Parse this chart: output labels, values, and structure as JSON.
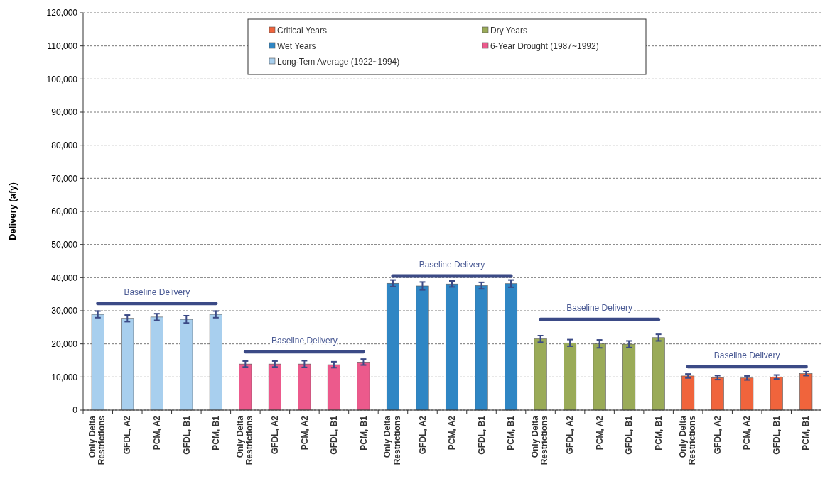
{
  "chart_data": {
    "type": "bar",
    "ylabel": "Delivery (afy)",
    "categories": [
      "Only Delta Restrictions",
      "GFDL, A2",
      "PCM, A2",
      "GFDL, B1",
      "PCM, B1",
      "Only Delta Restrictions",
      "GFDL, A2",
      "PCM, A2",
      "GFDL, B1",
      "PCM, B1",
      "Only Delta Restrictions",
      "GFDL, A2",
      "PCM, A2",
      "GFDL, B1",
      "PCM, B1",
      "Only Delta Restrictions",
      "GFDL, A2",
      "PCM, A2",
      "GFDL, B1",
      "PCM, B1",
      "Only Delta Restrictions",
      "GFDL, A2",
      "PCM, A2",
      "GFDL, B1",
      "PCM, B1"
    ],
    "ylim": [
      0,
      120000
    ],
    "yticks": [
      {
        "value": 0,
        "label": "0"
      },
      {
        "value": 10000,
        "label": "10,000"
      },
      {
        "value": 20000,
        "label": "20,000"
      },
      {
        "value": 30000,
        "label": "30,000"
      },
      {
        "value": 40000,
        "label": "40,000"
      },
      {
        "value": 50000,
        "label": "50,000"
      },
      {
        "value": 60000,
        "label": "60,000"
      },
      {
        "value": 70000,
        "label": "70,000"
      },
      {
        "value": 80000,
        "label": "80,000"
      },
      {
        "value": 90000,
        "label": "90,000"
      },
      {
        "value": 100000,
        "label": "100,000"
      },
      {
        "value": 110000,
        "label": "110,000"
      },
      {
        "value": 120000,
        "label": "120,000"
      }
    ],
    "grid": "y",
    "legend": "top",
    "series": [
      {
        "name": "Critical Years",
        "color": "#f0643c",
        "values": [
          null,
          null,
          null,
          null,
          null,
          null,
          null,
          null,
          null,
          null,
          null,
          null,
          null,
          null,
          null,
          null,
          null,
          null,
          null,
          null,
          10300,
          9800,
          9700,
          10000,
          11000
        ],
        "errors": [
          null,
          null,
          null,
          null,
          null,
          null,
          null,
          null,
          null,
          null,
          null,
          null,
          null,
          null,
          null,
          null,
          null,
          null,
          null,
          null,
          600,
          600,
          600,
          600,
          600
        ]
      },
      {
        "name": "Dry Years",
        "color": "#9aab58",
        "values": [
          null,
          null,
          null,
          null,
          null,
          null,
          null,
          null,
          null,
          null,
          null,
          null,
          null,
          null,
          null,
          21500,
          20300,
          20000,
          19900,
          21900,
          null,
          null,
          null,
          null,
          null
        ],
        "errors": [
          null,
          null,
          null,
          null,
          null,
          null,
          null,
          null,
          null,
          null,
          null,
          null,
          null,
          null,
          null,
          1000,
          1000,
          1200,
          1000,
          1000,
          null,
          null,
          null,
          null,
          null
        ]
      },
      {
        "name": "Wet Years",
        "color": "#2f86c4",
        "values": [
          null,
          null,
          null,
          null,
          null,
          null,
          null,
          null,
          null,
          null,
          38300,
          37500,
          38100,
          37600,
          38200,
          null,
          null,
          null,
          null,
          null,
          null,
          null,
          null,
          null,
          null
        ],
        "errors": [
          null,
          null,
          null,
          null,
          null,
          null,
          null,
          null,
          null,
          null,
          1000,
          1200,
          900,
          1000,
          1100,
          null,
          null,
          null,
          null,
          null,
          null,
          null,
          null,
          null,
          null
        ]
      },
      {
        "name": "6-Year Drought (1987~1992)",
        "color": "#ec5a8c",
        "values": [
          null,
          null,
          null,
          null,
          null,
          13900,
          13900,
          13900,
          13700,
          14500,
          null,
          null,
          null,
          null,
          null,
          null,
          null,
          null,
          null,
          null,
          null,
          null,
          null,
          null,
          null
        ],
        "errors": [
          null,
          null,
          null,
          null,
          null,
          900,
          900,
          1000,
          900,
          900,
          null,
          null,
          null,
          null,
          null,
          null,
          null,
          null,
          null,
          null,
          null,
          null,
          null,
          null,
          null
        ]
      },
      {
        "name": "Long-Tem Average (1922~1994)",
        "color": "#a8cfee",
        "values": [
          28900,
          27700,
          28100,
          27400,
          28900,
          null,
          null,
          null,
          null,
          null,
          null,
          null,
          null,
          null,
          null,
          null,
          null,
          null,
          null,
          null,
          null,
          null,
          null,
          null,
          null
        ],
        "errors": [
          1000,
          1000,
          1000,
          1100,
          1000,
          null,
          null,
          null,
          null,
          null,
          null,
          null,
          null,
          null,
          null,
          null,
          null,
          null,
          null,
          null,
          null,
          null,
          null,
          null,
          null
        ]
      },
      {
        "type": "line",
        "name": "Baseline Delivery",
        "color": "#3b4a86",
        "values": [
          32200,
          32200,
          32200,
          32200,
          32200,
          null,
          null,
          null,
          null,
          null,
          null,
          null,
          null,
          null,
          null,
          null,
          null,
          null,
          null,
          null,
          null,
          null,
          null,
          null,
          null
        ]
      },
      {
        "type": "line",
        "name": "Baseline Delivery",
        "color": "#3b4a86",
        "values": [
          null,
          null,
          null,
          null,
          null,
          17600,
          17600,
          17600,
          17600,
          17600,
          null,
          null,
          null,
          null,
          null,
          null,
          null,
          null,
          null,
          null,
          null,
          null,
          null,
          null,
          null
        ]
      },
      {
        "type": "line",
        "name": "Baseline Delivery",
        "color": "#3b4a86",
        "values": [
          null,
          null,
          null,
          null,
          null,
          null,
          null,
          null,
          null,
          null,
          40500,
          40500,
          40500,
          40500,
          40500,
          null,
          null,
          null,
          null,
          null,
          null,
          null,
          null,
          null,
          null
        ]
      },
      {
        "type": "line",
        "name": "Baseline Delivery",
        "color": "#3b4a86",
        "values": [
          null,
          null,
          null,
          null,
          null,
          null,
          null,
          null,
          null,
          null,
          null,
          null,
          null,
          null,
          null,
          27400,
          27400,
          27400,
          27400,
          27400,
          null,
          null,
          null,
          null,
          null
        ]
      },
      {
        "type": "line",
        "name": "Baseline Delivery",
        "color": "#3b4a86",
        "values": [
          null,
          null,
          null,
          null,
          null,
          null,
          null,
          null,
          null,
          null,
          null,
          null,
          null,
          null,
          null,
          null,
          null,
          null,
          null,
          null,
          13100,
          13100,
          13100,
          13100,
          13100
        ]
      }
    ]
  }
}
